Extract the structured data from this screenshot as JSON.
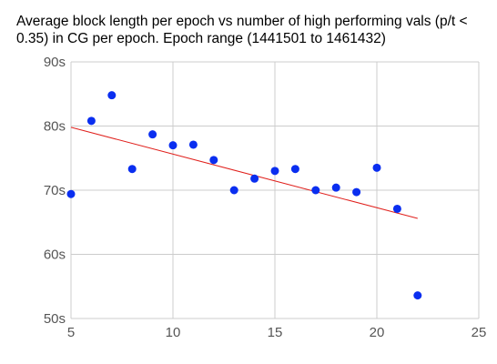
{
  "chart_data": {
    "type": "scatter",
    "title": "Average block length per epoch vs number of high performing vals (p/t < 0.35) in CG per epoch. Epoch range (1441501 to 1461432)",
    "xlabel": "",
    "ylabel": "",
    "xlim": [
      5,
      25
    ],
    "ylim": [
      50,
      90
    ],
    "x_ticks": [
      5,
      10,
      15,
      20,
      25
    ],
    "y_ticks": [
      50,
      60,
      70,
      80,
      90
    ],
    "y_tick_labels": [
      "50s",
      "60s",
      "70s",
      "80s",
      "90s"
    ],
    "grid": true,
    "points": [
      {
        "x": 5,
        "y": 69.4
      },
      {
        "x": 6,
        "y": 80.8
      },
      {
        "x": 7,
        "y": 84.8
      },
      {
        "x": 8,
        "y": 73.3
      },
      {
        "x": 9,
        "y": 78.7
      },
      {
        "x": 10,
        "y": 77.0
      },
      {
        "x": 11,
        "y": 77.1
      },
      {
        "x": 12,
        "y": 74.7
      },
      {
        "x": 13,
        "y": 70.0
      },
      {
        "x": 14,
        "y": 71.8
      },
      {
        "x": 15,
        "y": 73.0
      },
      {
        "x": 16,
        "y": 73.3
      },
      {
        "x": 17,
        "y": 70.0
      },
      {
        "x": 18,
        "y": 70.4
      },
      {
        "x": 19,
        "y": 69.7
      },
      {
        "x": 20,
        "y": 73.5
      },
      {
        "x": 21,
        "y": 67.1
      },
      {
        "x": 22,
        "y": 53.6
      }
    ],
    "trendline": {
      "start": {
        "x": 5,
        "y": 79.8
      },
      "end": {
        "x": 22,
        "y": 65.6
      }
    },
    "colors": {
      "point": "#0a2ef0",
      "trendline": "#e0201c",
      "grid": "#cccccc",
      "tick_label": "#555555"
    }
  }
}
